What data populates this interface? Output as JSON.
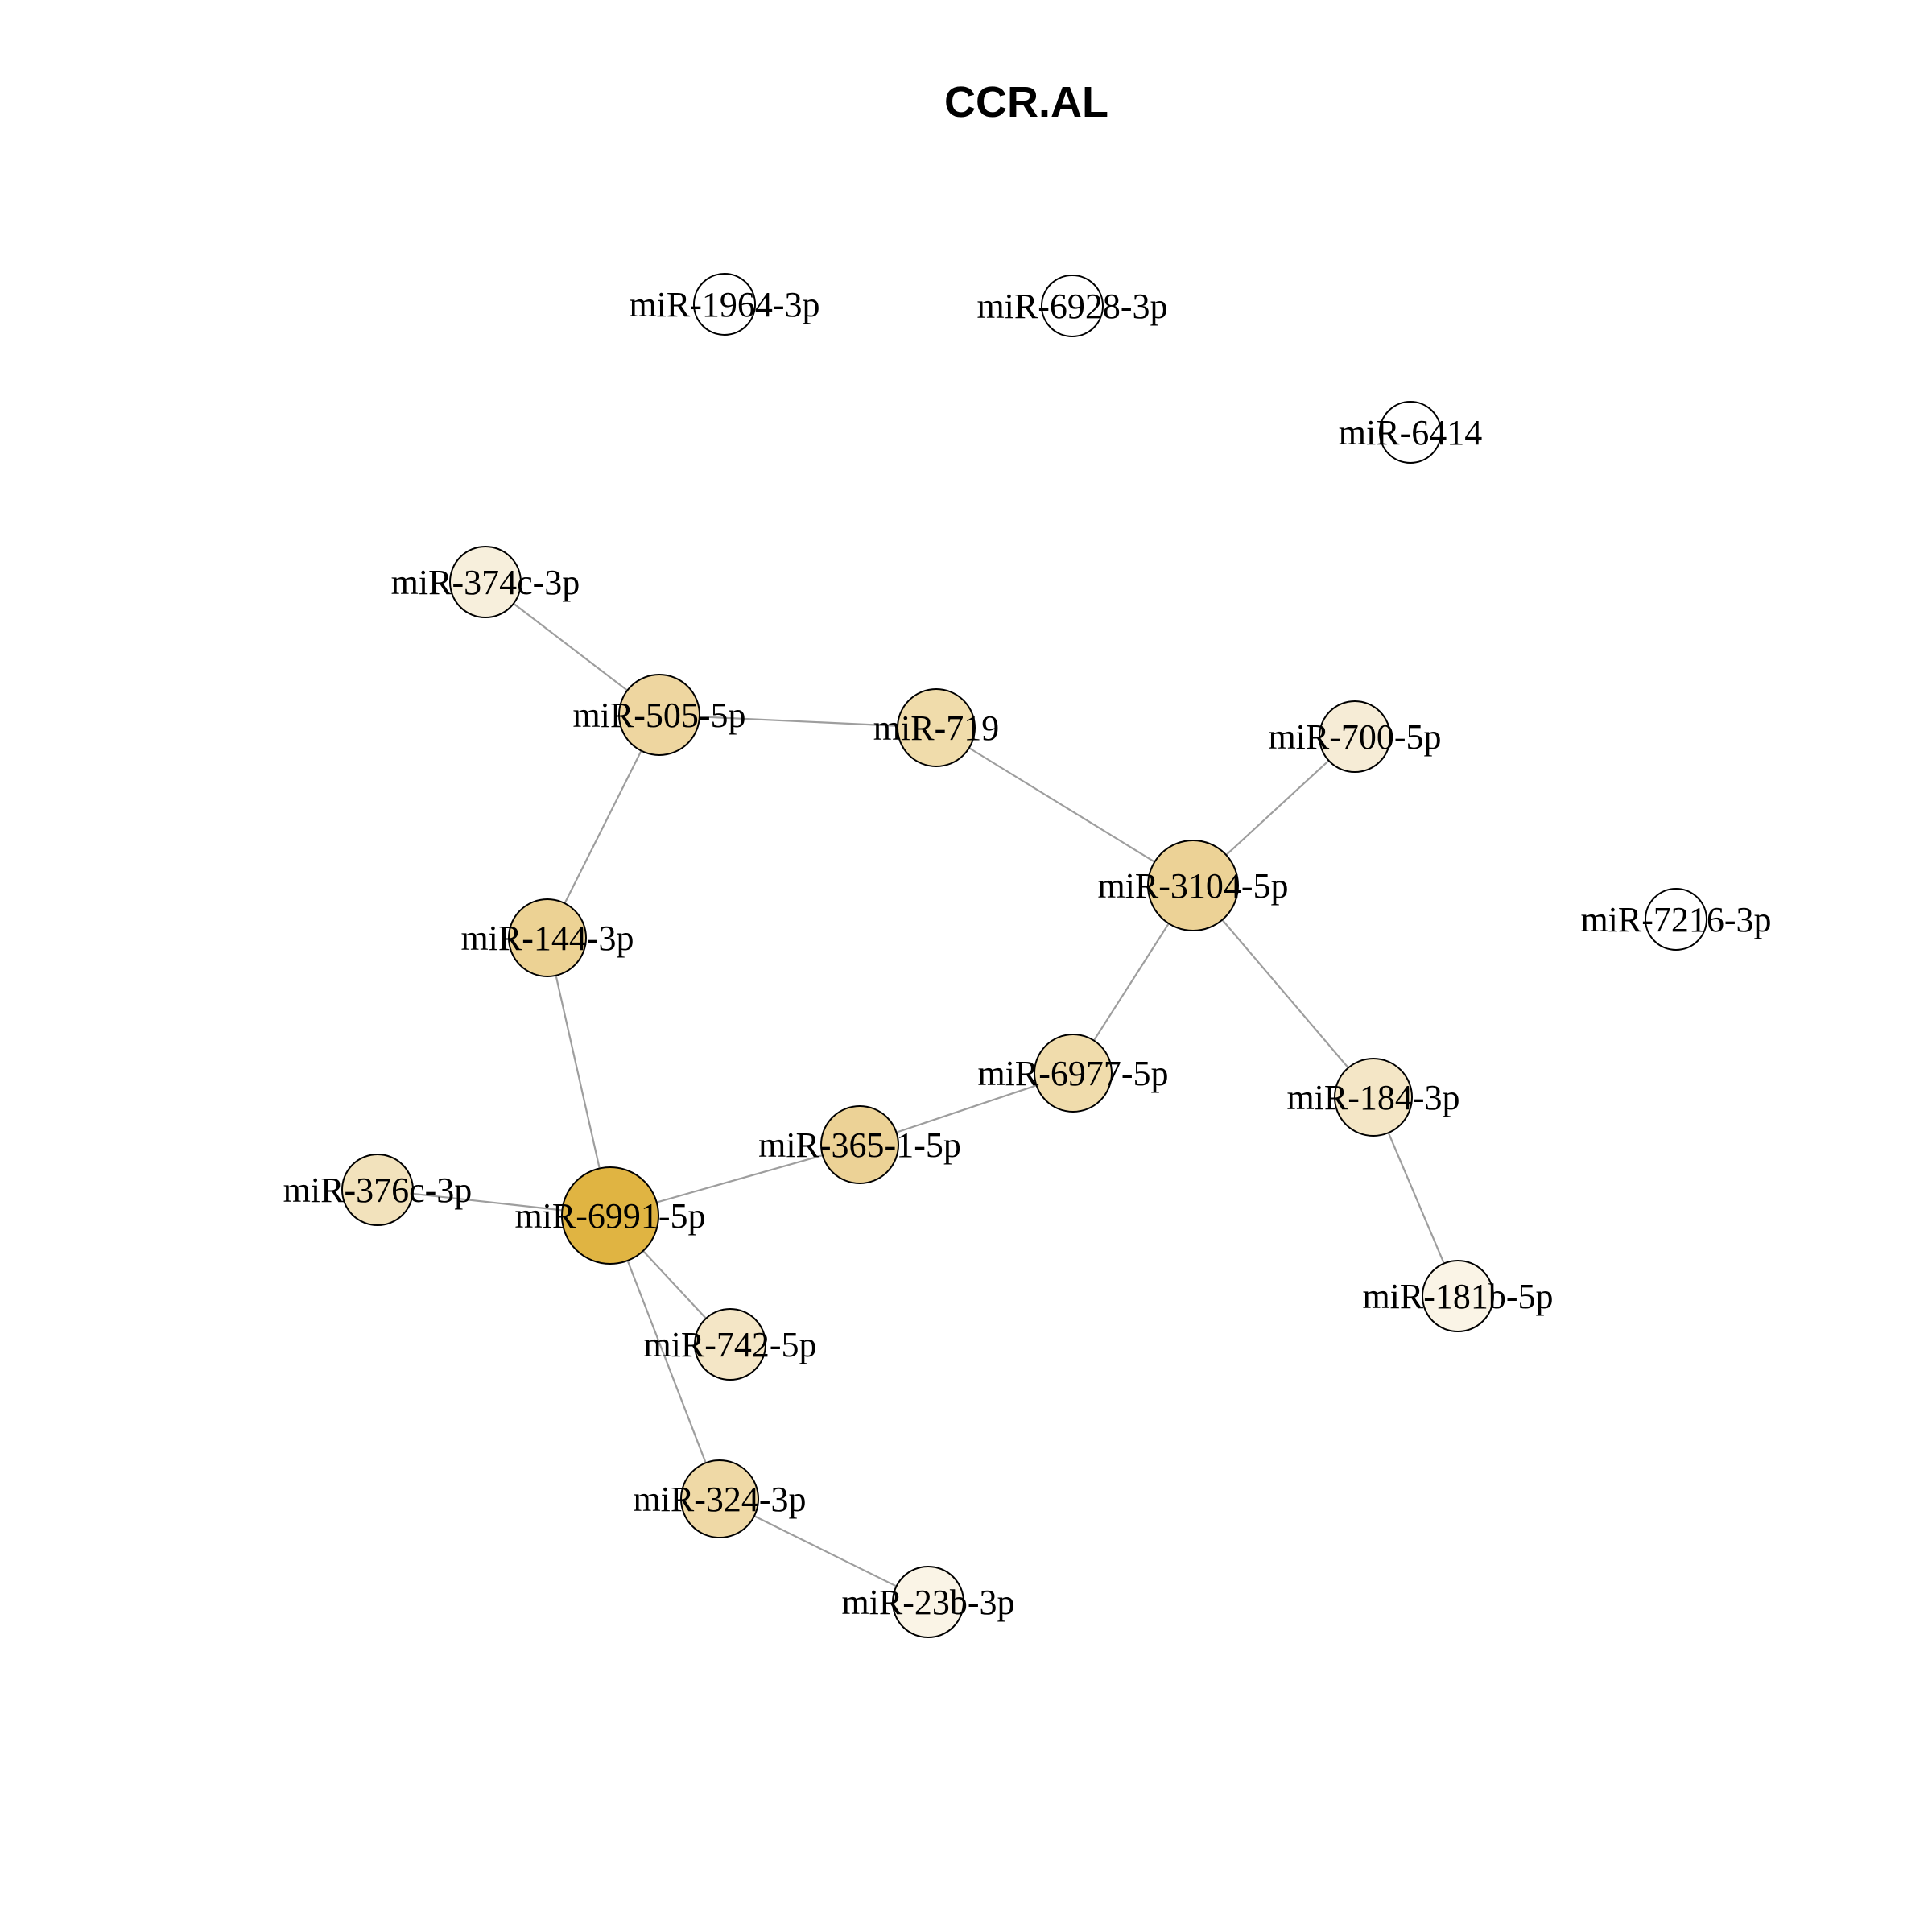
{
  "title": "CCR.AL",
  "nodes": [
    {
      "id": "miR-1964-3p",
      "label": "miR-1964-3p",
      "degree": 0,
      "fill": "#ffffff"
    },
    {
      "id": "miR-6928-3p",
      "label": "miR-6928-3p",
      "degree": 0,
      "fill": "#ffffff"
    },
    {
      "id": "miR-6414",
      "label": "miR-6414",
      "degree": 0,
      "fill": "#ffffff"
    },
    {
      "id": "miR-374c-3p",
      "label": "miR-374c-3p",
      "degree": 1,
      "fill": "#f7efdc"
    },
    {
      "id": "miR-505-5p",
      "label": "miR-505-5p",
      "degree": 3,
      "fill": "#eed6a0"
    },
    {
      "id": "miR-719",
      "label": "miR-719",
      "degree": 2,
      "fill": "#f0dcab"
    },
    {
      "id": "miR-700-5p",
      "label": "miR-700-5p",
      "degree": 1,
      "fill": "#f6ecd6"
    },
    {
      "id": "miR-3104-5p",
      "label": "miR-3104-5p",
      "degree": 4,
      "fill": "#ecd296"
    },
    {
      "id": "miR-7216-3p",
      "label": "miR-7216-3p",
      "degree": 0,
      "fill": "#ffffff"
    },
    {
      "id": "miR-144-3p",
      "label": "miR-144-3p",
      "degree": 2,
      "fill": "#ecd294"
    },
    {
      "id": "miR-6977-5p",
      "label": "miR-6977-5p",
      "degree": 2,
      "fill": "#f0dcac"
    },
    {
      "id": "miR-184-3p",
      "label": "miR-184-3p",
      "degree": 2,
      "fill": "#f4e6c6"
    },
    {
      "id": "miR-365-1-5p",
      "label": "miR-365-1-5p",
      "degree": 2,
      "fill": "#ecd296"
    },
    {
      "id": "miR-376c-3p",
      "label": "miR-376c-3p",
      "degree": 1,
      "fill": "#f2e2bc"
    },
    {
      "id": "miR-6991-5p",
      "label": "miR-6991-5p",
      "degree": 5,
      "fill": "#e0b442"
    },
    {
      "id": "miR-181b-5p",
      "label": "miR-181b-5p",
      "degree": 1,
      "fill": "#faf4e6"
    },
    {
      "id": "miR-742-5p",
      "label": "miR-742-5p",
      "degree": 1,
      "fill": "#f4e6c6"
    },
    {
      "id": "miR-324-3p",
      "label": "miR-324-3p",
      "degree": 2,
      "fill": "#efd9a6"
    },
    {
      "id": "miR-23b-3p",
      "label": "miR-23b-3p",
      "degree": 1,
      "fill": "#faf4e6"
    }
  ],
  "edges": [
    [
      "miR-374c-3p",
      "miR-505-5p"
    ],
    [
      "miR-505-5p",
      "miR-719"
    ],
    [
      "miR-505-5p",
      "miR-144-3p"
    ],
    [
      "miR-719",
      "miR-3104-5p"
    ],
    [
      "miR-3104-5p",
      "miR-700-5p"
    ],
    [
      "miR-3104-5p",
      "miR-6977-5p"
    ],
    [
      "miR-3104-5p",
      "miR-184-3p"
    ],
    [
      "miR-184-3p",
      "miR-181b-5p"
    ],
    [
      "miR-144-3p",
      "miR-6991-5p"
    ],
    [
      "miR-6977-5p",
      "miR-365-1-5p"
    ],
    [
      "miR-365-1-5p",
      "miR-6991-5p"
    ],
    [
      "miR-376c-3p",
      "miR-6991-5p"
    ],
    [
      "miR-6991-5p",
      "miR-742-5p"
    ],
    [
      "miR-6991-5p",
      "miR-324-3p"
    ],
    [
      "miR-324-3p",
      "miR-23b-3p"
    ]
  ]
}
